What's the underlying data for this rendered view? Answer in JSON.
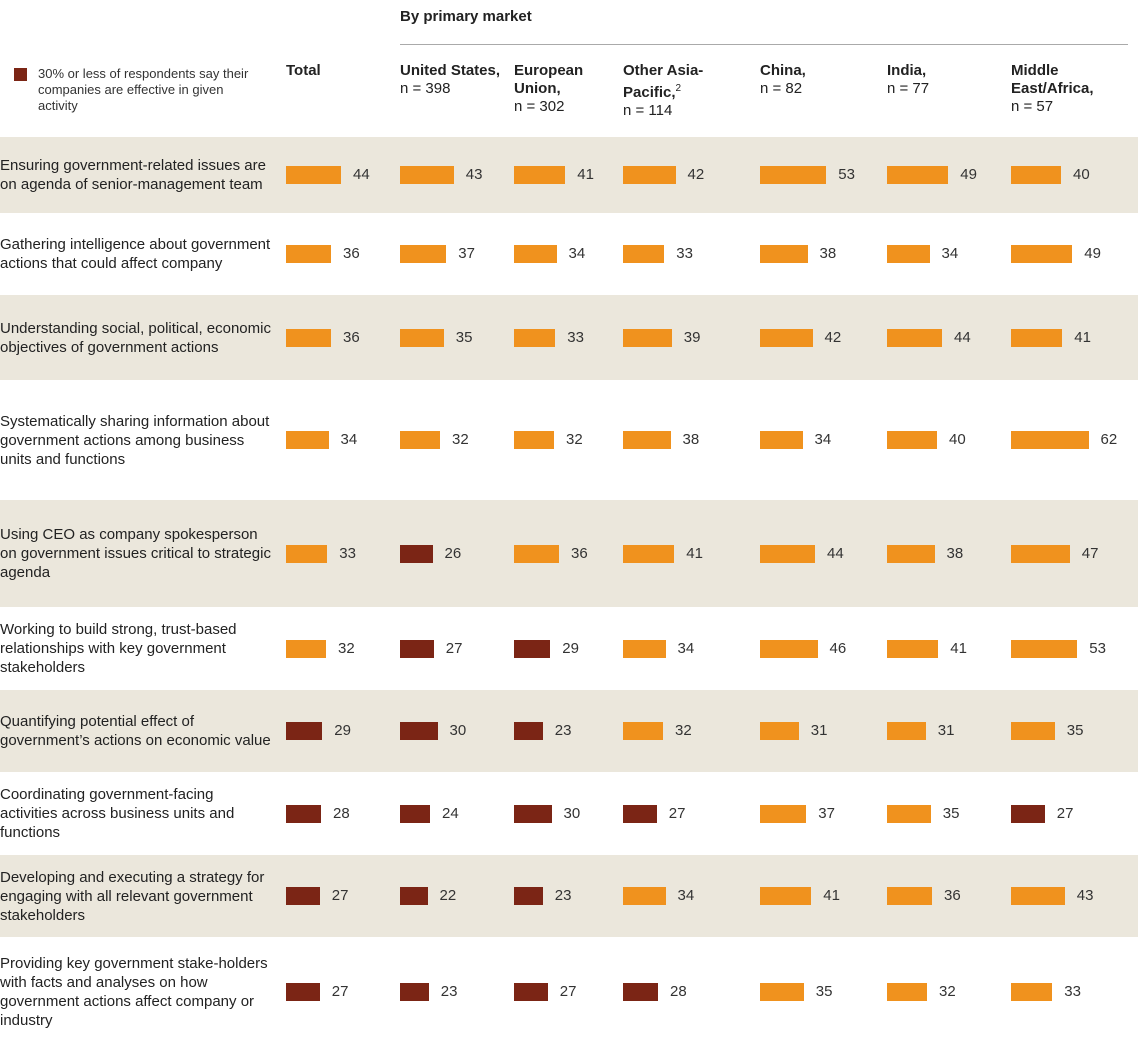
{
  "chart_data": {
    "type": "bar_table",
    "title": "By primary market",
    "legend": "30% or less of respondents say their companies are effective in given activity",
    "threshold": 30,
    "color": "#f0921e",
    "low_color": "#7b2515",
    "categories": [
      "Ensuring government-related issues are on agenda of senior-management team",
      "Gathering intelligence about government actions that could affect company",
      "Understanding social, political, economic objectives of government actions",
      "Systematically sharing information about government actions among business units and functions",
      "Using CEO as company spokesperson on government issues critical to strategic agenda",
      "Working to build strong, trust-based relationships with key government stakeholders",
      "Quantifying potential effect of government’s actions on economic value",
      "Coordinating government-facing activities across business units and functions",
      "Developing and executing a strategy for engaging with all relevant government stakeholders",
      "Providing key government stake-holders with facts and analyses on how government actions affect company or industry"
    ],
    "series": [
      {
        "name": "Total",
        "values": [
          44,
          36,
          36,
          34,
          33,
          32,
          29,
          28,
          27,
          27
        ]
      },
      {
        "name": "United States,",
        "n": "n = 398",
        "values": [
          43,
          37,
          35,
          32,
          26,
          27,
          30,
          24,
          22,
          23
        ]
      },
      {
        "name": "European Union,",
        "n": "n = 302",
        "values": [
          41,
          34,
          33,
          32,
          36,
          29,
          23,
          30,
          23,
          27
        ]
      },
      {
        "name": "Other Asia-Pacific,",
        "note": "2",
        "n": "n = 114",
        "values": [
          42,
          33,
          39,
          38,
          41,
          34,
          32,
          27,
          34,
          28
        ]
      },
      {
        "name": "China,",
        "n": "n = 82",
        "values": [
          53,
          38,
          42,
          34,
          44,
          46,
          31,
          37,
          41,
          35
        ]
      },
      {
        "name": "India,",
        "n": "n = 77",
        "values": [
          49,
          34,
          44,
          40,
          38,
          41,
          31,
          35,
          36,
          32
        ]
      },
      {
        "name": "Middle East/Africa,",
        "n": "n = 57",
        "values": [
          40,
          49,
          41,
          62,
          47,
          53,
          35,
          27,
          43,
          33
        ]
      }
    ]
  }
}
